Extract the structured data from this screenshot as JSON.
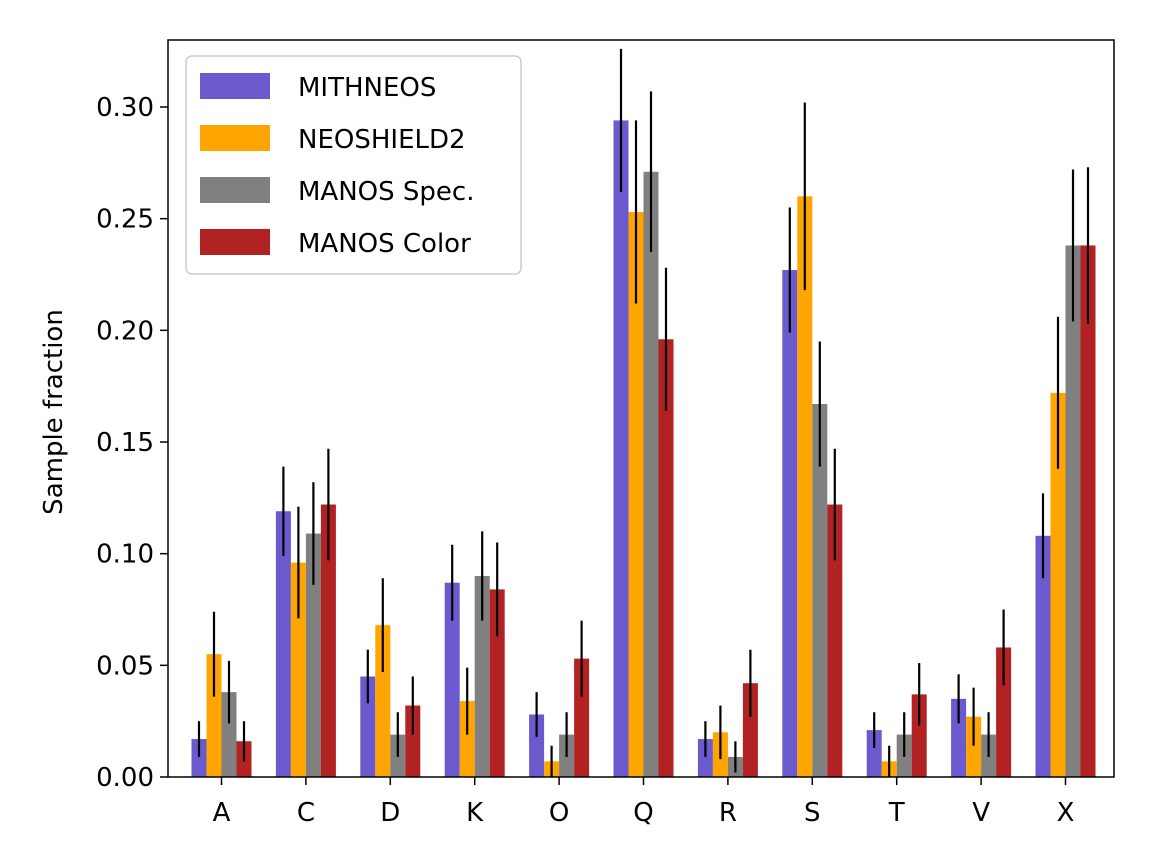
{
  "chart_data": {
    "type": "bar",
    "title": "",
    "xlabel": "",
    "ylabel": "Sample fraction",
    "ylim": [
      0,
      0.33
    ],
    "yticks": [
      "0.00",
      "0.05",
      "0.10",
      "0.15",
      "0.20",
      "0.25",
      "0.30"
    ],
    "grid": false,
    "legend_position": "top-left",
    "categories": [
      "A",
      "C",
      "D",
      "K",
      "O",
      "Q",
      "R",
      "S",
      "T",
      "V",
      "X"
    ],
    "series": [
      {
        "name": "MITHNEOS",
        "color": "#6a5acd",
        "values": [
          0.017,
          0.119,
          0.045,
          0.087,
          0.028,
          0.294,
          0.017,
          0.227,
          0.021,
          0.035,
          0.108
        ],
        "errors": [
          0.008,
          0.02,
          0.012,
          0.017,
          0.01,
          0.032,
          0.008,
          0.028,
          0.008,
          0.011,
          0.019
        ]
      },
      {
        "name": "NEOSHIELD2",
        "color": "#ffa500",
        "values": [
          0.055,
          0.096,
          0.068,
          0.034,
          0.007,
          0.253,
          0.02,
          0.26,
          0.007,
          0.027,
          0.172
        ],
        "errors": [
          0.019,
          0.025,
          0.021,
          0.015,
          0.007,
          0.041,
          0.012,
          0.042,
          0.007,
          0.013,
          0.034
        ]
      },
      {
        "name": "MANOS Spec.",
        "color": "#808080",
        "values": [
          0.038,
          0.109,
          0.019,
          0.09,
          0.019,
          0.271,
          0.009,
          0.167,
          0.019,
          0.019,
          0.238
        ],
        "errors": [
          0.014,
          0.023,
          0.01,
          0.02,
          0.01,
          0.036,
          0.007,
          0.028,
          0.01,
          0.01,
          0.034
        ]
      },
      {
        "name": "MANOS Color",
        "color": "#b22222",
        "values": [
          0.016,
          0.122,
          0.032,
          0.084,
          0.053,
          0.196,
          0.042,
          0.122,
          0.037,
          0.058,
          0.238
        ],
        "errors": [
          0.009,
          0.025,
          0.013,
          0.021,
          0.017,
          0.032,
          0.015,
          0.025,
          0.014,
          0.017,
          0.035
        ]
      }
    ]
  }
}
